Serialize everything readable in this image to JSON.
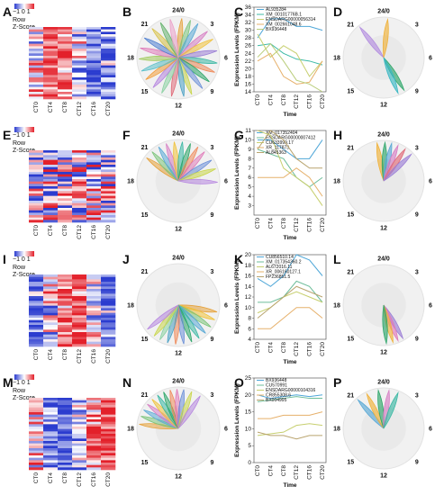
{
  "colors": {
    "low": "#2b3ccf",
    "mid": "#ffffff",
    "high": "#e3202a"
  },
  "heatmap_legend": {
    "ticks": "−1 0 1",
    "line1": "Row",
    "line2": "Z-Score"
  },
  "time_labels": [
    "CT0",
    "CT4",
    "CT8",
    "CT12",
    "CT16",
    "CT20"
  ],
  "clock_labels": {
    "top": "24/0",
    "h3": "3",
    "h6": "6",
    "h9": "9",
    "h12": "12",
    "h15": "15",
    "h18": "18",
    "h21": "21"
  },
  "line_axes": {
    "xlabel": "Time",
    "ylabel": "Expression Levels (FPKM)"
  },
  "rows": [
    {
      "labels": {
        "heatmap": "A",
        "rose": "B",
        "line": "C",
        "radial": "D"
      },
      "heatmap": {
        "rows": 30,
        "cols": 6,
        "pattern": "early"
      },
      "rose": {
        "petals": [
          {
            "angle": 5,
            "color": "#e6a23c"
          },
          {
            "angle": 18,
            "color": "#7cc47a"
          },
          {
            "angle": 30,
            "color": "#5aa9d6"
          },
          {
            "angle": 48,
            "color": "#d77fc4"
          },
          {
            "angle": 62,
            "color": "#f0c23b"
          },
          {
            "angle": 80,
            "color": "#9c7fd6"
          },
          {
            "angle": 98,
            "color": "#3cb8a4"
          },
          {
            "angle": 112,
            "color": "#ef8a5a"
          },
          {
            "angle": 128,
            "color": "#2ea66a"
          },
          {
            "angle": 142,
            "color": "#6b8fd8"
          },
          {
            "angle": 160,
            "color": "#c9d64a"
          },
          {
            "angle": 172,
            "color": "#4aa0c4"
          },
          {
            "angle": 190,
            "color": "#e06b7a"
          },
          {
            "angle": 205,
            "color": "#8bd1a3"
          },
          {
            "angle": 220,
            "color": "#b787e0"
          },
          {
            "angle": 236,
            "color": "#f29e3d"
          },
          {
            "angle": 250,
            "color": "#5cc0c9"
          },
          {
            "angle": 268,
            "color": "#9fca5a"
          },
          {
            "angle": 284,
            "color": "#e07bb9"
          },
          {
            "angle": 300,
            "color": "#4f7fd1"
          },
          {
            "angle": 318,
            "color": "#d9c24a"
          },
          {
            "angle": 333,
            "color": "#66b36e"
          },
          {
            "angle": 348,
            "color": "#eba0c8"
          }
        ]
      },
      "chart_data": {
        "type": "line",
        "xlabel": "Time",
        "ylabel": "Expression Levels (FPKM)",
        "categories": [
          "CT0",
          "CT4",
          "CT8",
          "CT12",
          "CT16",
          "CT20"
        ],
        "ylim": [
          14,
          36
        ],
        "yticks": [
          14,
          16,
          18,
          20,
          22,
          24,
          26,
          28,
          30,
          32,
          34,
          36
        ],
        "series": [
          {
            "name": "AL935284",
            "color": "#4fa7d8",
            "values": [
              28,
              33,
              33,
              31,
              31,
              30
            ]
          },
          {
            "name": "XM_00101776B.1",
            "color": "#3dbaa6",
            "values": [
              26,
              26.5,
              24,
              22.5,
              22,
              21
            ]
          },
          {
            "name": "ENSDARG00000056314",
            "color": "#c7cf6f",
            "values": [
              29,
              23,
              26,
              24,
              18,
              22
            ]
          },
          {
            "name": "XM_002661048.6",
            "color": "#e6b06a",
            "values": [
              22,
              24,
              18,
              16,
              16.5,
              22
            ]
          },
          {
            "name": "BX936448",
            "color": "#b9cd7a",
            "values": [
              23,
              26.5,
              22,
              17,
              16,
              14
            ]
          }
        ]
      },
      "radial": {
        "petals": [
          {
            "angle": 322,
            "color": "#b38ee0"
          },
          {
            "angle": 6,
            "color": "#f0b23b"
          },
          {
            "angle": 148,
            "color": "#2ea66a"
          },
          {
            "angle": 158,
            "color": "#3cb8c4"
          }
        ]
      }
    },
    {
      "labels": {
        "heatmap": "E",
        "rose": "F",
        "line": "G",
        "radial": "H"
      },
      "heatmap": {
        "rows": 30,
        "cols": 6,
        "pattern": "mixed"
      },
      "rose": {
        "petals": [
          {
            "angle": 306,
            "color": "#e6a23c"
          },
          {
            "angle": 318,
            "color": "#7cc47a"
          },
          {
            "angle": 330,
            "color": "#5aa9d6"
          },
          {
            "angle": 342,
            "color": "#d77fc4"
          },
          {
            "angle": 354,
            "color": "#f0c23b"
          },
          {
            "angle": 6,
            "color": "#3cb8a4"
          },
          {
            "angle": 18,
            "color": "#2ea66a"
          },
          {
            "angle": 30,
            "color": "#ef8a5a"
          },
          {
            "angle": 42,
            "color": "#e07bb9"
          },
          {
            "angle": 58,
            "color": "#6b8fd8"
          },
          {
            "angle": 72,
            "color": "#c9d64a"
          },
          {
            "angle": 92,
            "color": "#b787e0"
          }
        ]
      },
      "chart_data": {
        "type": "line",
        "xlabel": "Time",
        "ylabel": "Expression Levels (FPKM)",
        "categories": [
          "CT0",
          "CT4",
          "CT8",
          "CT12",
          "CT16",
          "CT20"
        ],
        "ylim": [
          2,
          11
        ],
        "yticks": [
          3,
          4,
          5,
          6,
          7,
          8,
          9,
          10,
          11
        ],
        "series": [
          {
            "name": "XM_017352404",
            "color": "#4fa7d8",
            "values": [
              10,
              10,
              9,
              8,
              8,
              10
            ]
          },
          {
            "name": "ENSDARG00000007412",
            "color": "#6dbd9a",
            "values": [
              9,
              8.5,
              8,
              6,
              5,
              6
            ]
          },
          {
            "name": "CU633999.17",
            "color": "#c7cf6f",
            "values": [
              11,
              10.5,
              7,
              6,
              5,
              3
            ]
          },
          {
            "name": "XR_117873",
            "color": "#e6b06a",
            "values": [
              6,
              6,
              6,
              7,
              6,
              4
            ]
          },
          {
            "name": "AL845363",
            "color": "#b9a46e",
            "values": [
              9,
              11,
              10,
              8,
              7,
              7
            ]
          }
        ]
      },
      "radial": {
        "petals": [
          {
            "angle": 350,
            "color": "#f0b23b"
          },
          {
            "angle": 2,
            "color": "#2ea66a"
          },
          {
            "angle": 12,
            "color": "#5aa9d6"
          },
          {
            "angle": 22,
            "color": "#d77fc4"
          },
          {
            "angle": 34,
            "color": "#e06b7a"
          },
          {
            "angle": 46,
            "color": "#9c7fd6"
          }
        ]
      }
    },
    {
      "labels": {
        "heatmap": "I",
        "rose": "J",
        "line": "K",
        "radial": "L"
      },
      "heatmap": {
        "rows": 30,
        "cols": 6,
        "pattern": "mid"
      },
      "rose": {
        "petals": [
          {
            "angle": 100,
            "color": "#e6a23c"
          },
          {
            "angle": 112,
            "color": "#f0c23b"
          },
          {
            "angle": 124,
            "color": "#7cc47a"
          },
          {
            "angle": 136,
            "color": "#5aa9d6"
          },
          {
            "angle": 148,
            "color": "#3cb8a4"
          },
          {
            "angle": 160,
            "color": "#2ea66a"
          },
          {
            "angle": 172,
            "color": "#6b8fd8"
          },
          {
            "angle": 184,
            "color": "#ef8a5a"
          },
          {
            "angle": 196,
            "color": "#4aa0c4"
          },
          {
            "angle": 208,
            "color": "#8bd1a3"
          },
          {
            "angle": 218,
            "color": "#c9d64a"
          },
          {
            "angle": 232,
            "color": "#b787e0"
          }
        ]
      },
      "chart_data": {
        "type": "line",
        "xlabel": "Time",
        "ylabel": "Expression Levels (FPKM)",
        "categories": [
          "CT0",
          "CT4",
          "CT8",
          "CT12",
          "CT16",
          "CT20"
        ],
        "ylim": [
          4,
          20
        ],
        "yticks": [
          4,
          6,
          8,
          10,
          12,
          14,
          16,
          18,
          20
        ],
        "series": [
          {
            "name": "CU856510.14",
            "color": "#4fa7d8",
            "values": [
              15.5,
              14,
              16,
              20,
              19,
              16
            ]
          },
          {
            "name": "XM_017354360.2",
            "color": "#6dbd9a",
            "values": [
              11,
              11,
              12,
              15,
              14,
              11
            ]
          },
          {
            "name": "AL672016.11",
            "color": "#c7cf6f",
            "values": [
              9,
              10,
              12,
              13,
              12,
              11
            ]
          },
          {
            "name": "XR_006160127.1",
            "color": "#e6b06a",
            "values": [
              6,
              6,
              8,
              10,
              10,
              8
            ]
          },
          {
            "name": "FP236851.5",
            "color": "#b9a46e",
            "values": [
              8,
              10,
              12,
              14,
              13,
              12
            ]
          }
        ]
      },
      "radial": {
        "petals": [
          {
            "angle": 150,
            "color": "#9c7fd6"
          },
          {
            "angle": 158,
            "color": "#e07bb9"
          },
          {
            "angle": 166,
            "color": "#f0b23b"
          },
          {
            "angle": 176,
            "color": "#2ea66a"
          }
        ]
      }
    },
    {
      "labels": {
        "heatmap": "M",
        "rose": "N",
        "line": "O",
        "radial": "P"
      },
      "heatmap": {
        "rows": 30,
        "cols": 6,
        "pattern": "late"
      },
      "rose": {
        "petals": [
          {
            "angle": 276,
            "color": "#e6a23c"
          },
          {
            "angle": 288,
            "color": "#7cc47a"
          },
          {
            "angle": 298,
            "color": "#5aa9d6"
          },
          {
            "angle": 308,
            "color": "#d77fc4"
          },
          {
            "angle": 318,
            "color": "#f0c23b"
          },
          {
            "angle": 328,
            "color": "#3cb8a4"
          },
          {
            "angle": 338,
            "color": "#2ea66a"
          },
          {
            "angle": 348,
            "color": "#ef8a5a"
          },
          {
            "angle": 358,
            "color": "#e07bb9"
          },
          {
            "angle": 8,
            "color": "#6b8fd8"
          },
          {
            "angle": 20,
            "color": "#c9d64a"
          },
          {
            "angle": 34,
            "color": "#b787e0"
          }
        ]
      },
      "chart_data": {
        "type": "line",
        "xlabel": "Time",
        "ylabel": "Expression Levels (FPKM)",
        "categories": [
          "CT0",
          "CT4",
          "CT8",
          "CT12",
          "CT16",
          "CT20"
        ],
        "ylim": [
          0,
          25
        ],
        "yticks": [
          0,
          5,
          10,
          15,
          20,
          25
        ],
        "series": [
          {
            "name": "BX936448",
            "color": "#4fa7d8",
            "values": [
              20,
              19,
              19.5,
              20,
              19.5,
              20
            ]
          },
          {
            "name": "CU570991",
            "color": "#6dbd9a",
            "values": [
              18,
              18.5,
              19,
              19.5,
              19,
              19
            ]
          },
          {
            "name": "ENSDARG00000104316",
            "color": "#c7cf6f",
            "values": [
              8,
              8.5,
              9,
              11,
              11.5,
              11
            ]
          },
          {
            "name": "CR855308.6",
            "color": "#e6b06a",
            "values": [
              13,
              13,
              14,
              14,
              14,
              15
            ]
          },
          {
            "name": "BX004995",
            "color": "#b9a46e",
            "values": [
              9,
              8,
              8,
              7,
              8,
              8
            ]
          }
        ]
      },
      "radial": {
        "petals": [
          {
            "angle": 318,
            "color": "#5aa9d6"
          },
          {
            "angle": 334,
            "color": "#f0b23b"
          },
          {
            "angle": 352,
            "color": "#2ea66a"
          },
          {
            "angle": 8,
            "color": "#d77fc4"
          },
          {
            "angle": 22,
            "color": "#3cb8a4"
          }
        ]
      }
    }
  ]
}
